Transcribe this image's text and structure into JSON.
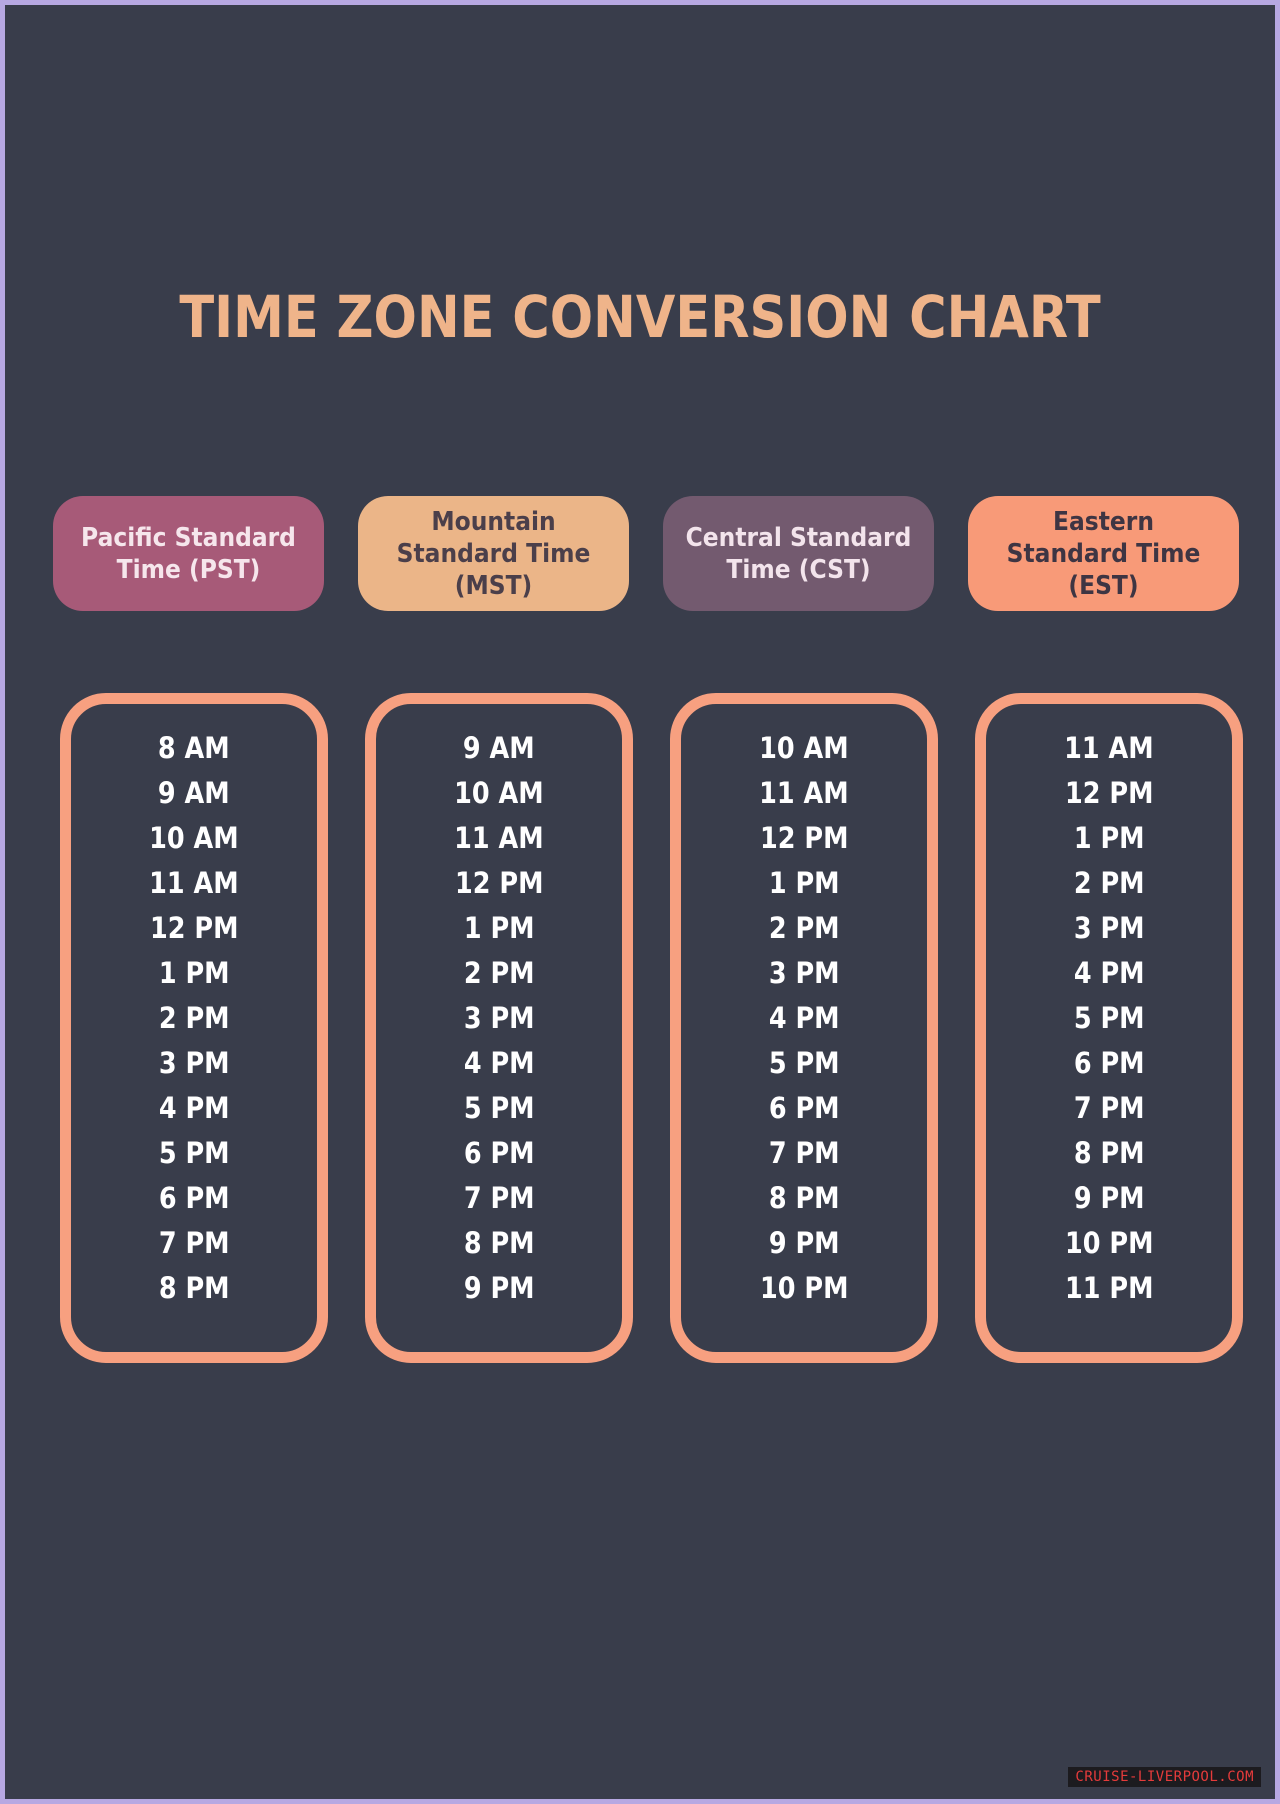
{
  "title": "TIME ZONE CONVERSION CHART",
  "columns": [
    {
      "id": "pst",
      "header": "Pacific Standard Time (PST)",
      "color": "#a75a78",
      "times": [
        "8 AM",
        "9 AM",
        "10 AM",
        "11 AM",
        "12 PM",
        "1 PM",
        "2 PM",
        "3 PM",
        "4 PM",
        "5 PM",
        "6 PM",
        "7 PM",
        "8 PM"
      ]
    },
    {
      "id": "mst",
      "header": "Mountain Standard Time (MST)",
      "color": "#ebb588",
      "times": [
        "9 AM",
        "10 AM",
        "11 AM",
        "12 PM",
        "1 PM",
        "2 PM",
        "3 PM",
        "4 PM",
        "5 PM",
        "6 PM",
        "7 PM",
        "8 PM",
        "9 PM"
      ]
    },
    {
      "id": "cst",
      "header": "Central Standard Time (CST)",
      "color": "#735a6f",
      "times": [
        "10 AM",
        "11 AM",
        "12 PM",
        "1 PM",
        "2 PM",
        "3 PM",
        "4 PM",
        "5 PM",
        "6 PM",
        "7 PM",
        "8 PM",
        "9 PM",
        "10 PM"
      ]
    },
    {
      "id": "est",
      "header": "Eastern Standard Time (EST)",
      "color": "#f89a78",
      "times": [
        "11 AM",
        "12 PM",
        "1 PM",
        "2 PM",
        "3 PM",
        "4 PM",
        "5 PM",
        "6 PM",
        "7 PM",
        "8 PM",
        "9 PM",
        "10 PM",
        "11 PM"
      ]
    }
  ],
  "watermark": "CRUISE-LIVERPOOL.COM",
  "colors": {
    "background": "#393d4b",
    "title": "#efb48a",
    "box_border": "#f7a080",
    "time_text": "#ffffff"
  }
}
